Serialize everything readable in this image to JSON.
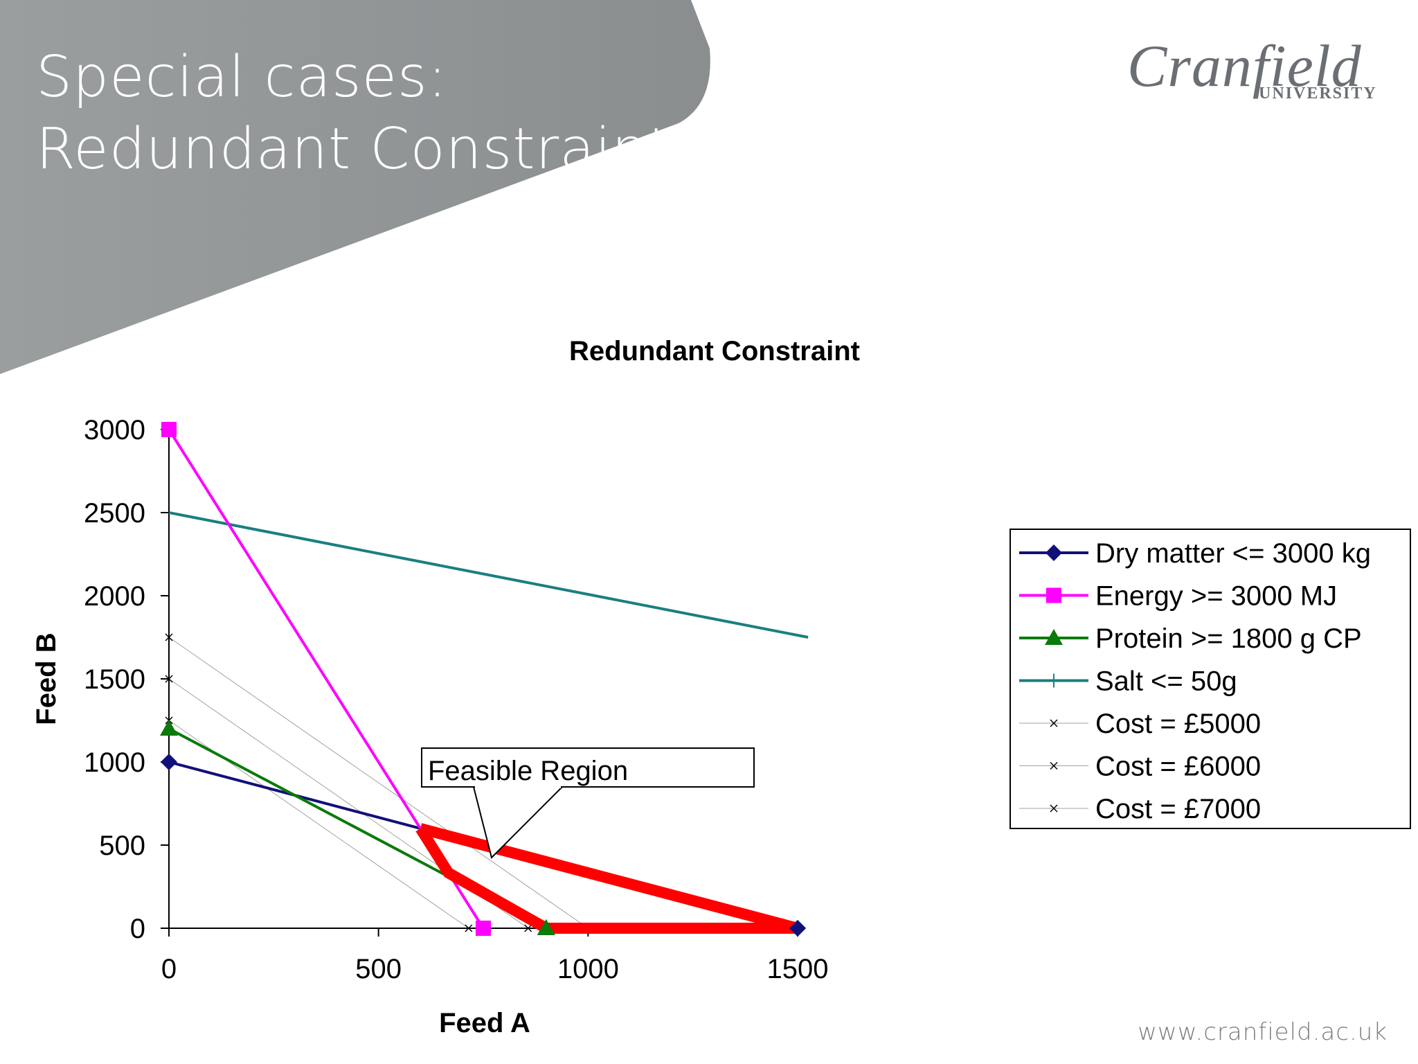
{
  "slide": {
    "title_line1": "Special cases:",
    "title_line2": "Redundant Constraint",
    "logo_name": "Cranfield",
    "logo_sub": "UNIVERSITY",
    "footer_url": "www.cranfield.ac.uk",
    "banner_color": "#8f9394"
  },
  "chart_data": {
    "type": "line",
    "title": "Redundant Constraint",
    "xlabel": "Feed A",
    "ylabel": "Feed B",
    "xlim": [
      0,
      1500
    ],
    "ylim": [
      0,
      3000
    ],
    "xticks": [
      0,
      500,
      1000,
      1500
    ],
    "yticks": [
      0,
      500,
      1000,
      1500,
      2000,
      2500,
      3000
    ],
    "series": [
      {
        "name": "Dry matter <= 3000 kg",
        "color": "#10107a",
        "width": 4,
        "marker": "diamond",
        "points": [
          [
            0,
            1000
          ],
          [
            1500,
            0
          ]
        ],
        "marker_points": [
          [
            0,
            1000
          ],
          [
            1500,
            0
          ]
        ]
      },
      {
        "name": "Energy >= 3000 MJ",
        "color": "#ff00ff",
        "width": 4,
        "marker": "square",
        "points": [
          [
            0,
            3000
          ],
          [
            750,
            0
          ]
        ],
        "marker_points": [
          [
            0,
            3000
          ],
          [
            750,
            0
          ]
        ]
      },
      {
        "name": "Protein >= 1800 g CP",
        "color": "#0a7a0a",
        "width": 4,
        "marker": "triangle",
        "points": [
          [
            0,
            1200
          ],
          [
            900,
            0
          ]
        ],
        "marker_points": [
          [
            0,
            1200
          ],
          [
            900,
            0
          ]
        ]
      },
      {
        "name": "Salt <= 50g",
        "color": "#1a7f80",
        "width": 4,
        "marker": "plus",
        "points": [
          [
            0,
            2500
          ],
          [
            1525,
            1750
          ]
        ],
        "marker_points": []
      },
      {
        "name": "Cost = £5000",
        "color": "#a0a0a0",
        "width": 1,
        "marker": "x",
        "points": [
          [
            0,
            1250
          ],
          [
            715,
            0
          ]
        ],
        "marker_points": [
          [
            0,
            1250
          ],
          [
            715,
            0
          ]
        ]
      },
      {
        "name": "Cost = £6000",
        "color": "#a0a0a0",
        "width": 1,
        "marker": "x",
        "points": [
          [
            0,
            1500
          ],
          [
            857,
            0
          ]
        ],
        "marker_points": [
          [
            0,
            1500
          ],
          [
            857,
            0
          ]
        ]
      },
      {
        "name": "Cost = £7000",
        "color": "#a0a0a0",
        "width": 1,
        "marker": "x",
        "points": [
          [
            0,
            1750
          ],
          [
            1000,
            0
          ]
        ],
        "marker_points": [
          [
            0,
            1750
          ]
        ]
      }
    ],
    "feasible_region": {
      "color": "#ff0000",
      "points": [
        [
          600,
          600
        ],
        [
          666.7,
          333.3
        ],
        [
          900,
          0
        ],
        [
          1500,
          0
        ],
        [
          600,
          600
        ]
      ]
    },
    "annotation": {
      "text": "Feasible Region",
      "pointer_targets": [
        [
          765,
          430
        ],
        [
          765,
          430
        ]
      ]
    },
    "legend": "right"
  }
}
